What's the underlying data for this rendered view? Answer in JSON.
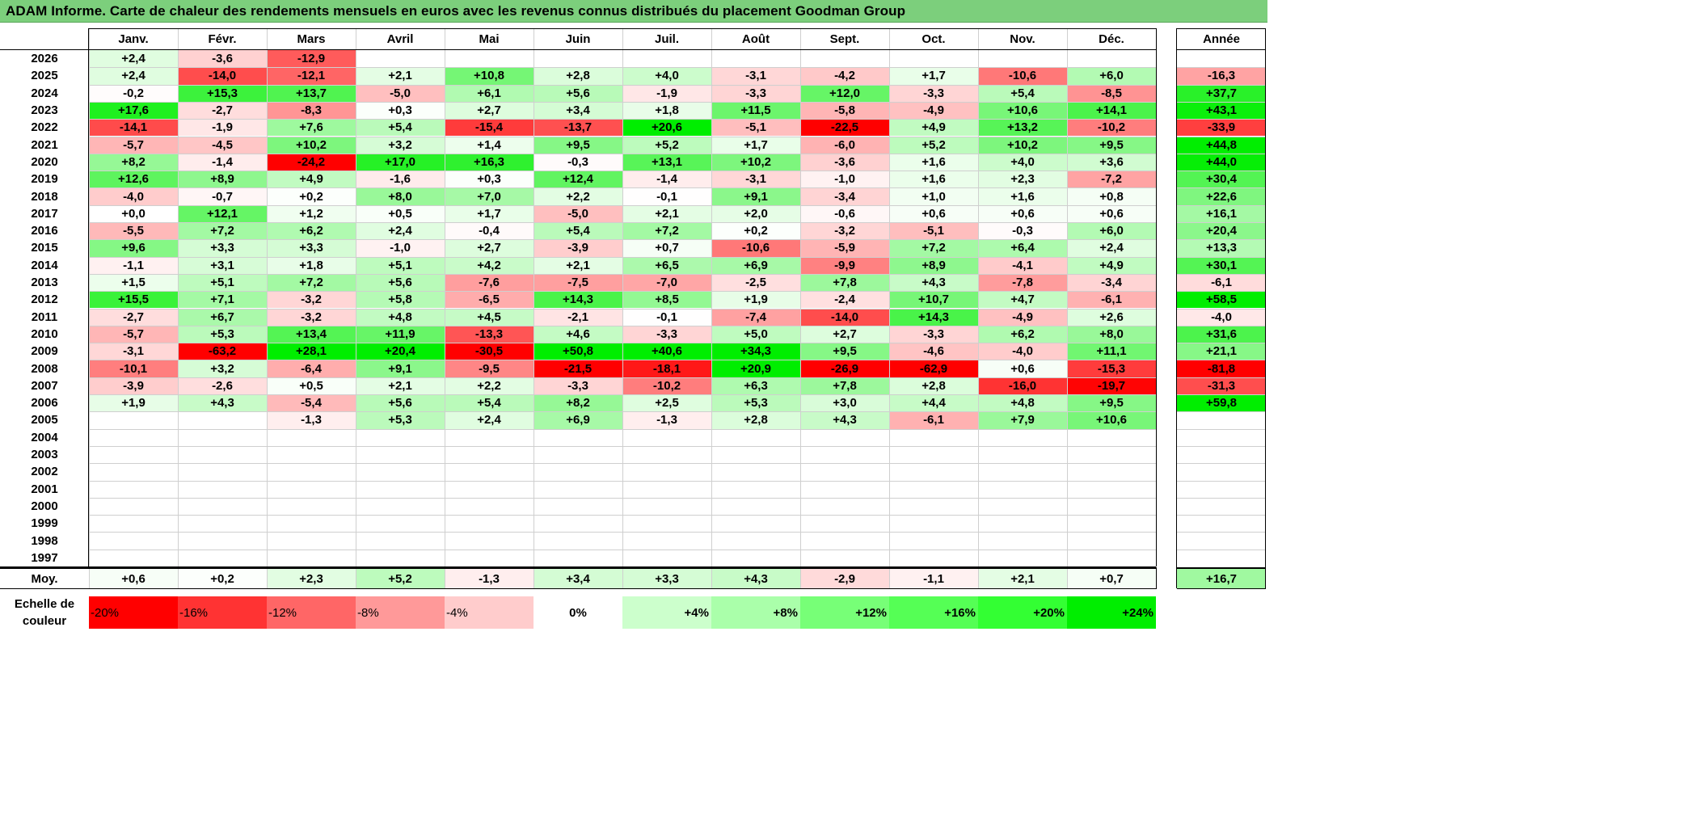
{
  "title": "ADAM Informe. Carte de chaleur des rendements mensuels en euros avec les revenus connus distribués du placement Goodman Group",
  "chart_data": {
    "type": "heatmap",
    "months": [
      "Janv.",
      "Févr.",
      "Mars",
      "Avril",
      "Mai",
      "Juin",
      "Juil.",
      "Août",
      "Sept.",
      "Oct.",
      "Nov.",
      "Déc."
    ],
    "year_header": "Année",
    "rows": [
      {
        "year": "2026",
        "values": [
          "+2,4",
          "-3,6",
          "-12,9",
          "",
          "",
          "",
          "",
          "",
          "",
          "",
          "",
          ""
        ],
        "annual": ""
      },
      {
        "year": "2025",
        "values": [
          "+2,4",
          "-14,0",
          "-12,1",
          "+2,1",
          "+10,8",
          "+2,8",
          "+4,0",
          "-3,1",
          "-4,2",
          "+1,7",
          "-10,6",
          "+6,0"
        ],
        "annual": "-16,3"
      },
      {
        "year": "2024",
        "values": [
          "-0,2",
          "+15,3",
          "+13,7",
          "-5,0",
          "+6,1",
          "+5,6",
          "-1,9",
          "-3,3",
          "+12,0",
          "-3,3",
          "+5,4",
          "-8,5"
        ],
        "annual": "+37,7"
      },
      {
        "year": "2023",
        "values": [
          "+17,6",
          "-2,7",
          "-8,3",
          "+0,3",
          "+2,7",
          "+3,4",
          "+1,8",
          "+11,5",
          "-5,8",
          "-4,9",
          "+10,6",
          "+14,1"
        ],
        "annual": "+43,1"
      },
      {
        "year": "2022",
        "values": [
          "-14,1",
          "-1,9",
          "+7,6",
          "+5,4",
          "-15,4",
          "-13,7",
          "+20,6",
          "-5,1",
          "-22,5",
          "+4,9",
          "+13,2",
          "-10,2"
        ],
        "annual": "-33,9"
      },
      {
        "year": "2021",
        "values": [
          "-5,7",
          "-4,5",
          "+10,2",
          "+3,2",
          "+1,4",
          "+9,5",
          "+5,2",
          "+1,7",
          "-6,0",
          "+5,2",
          "+10,2",
          "+9,5"
        ],
        "annual": "+44,8"
      },
      {
        "year": "2020",
        "values": [
          "+8,2",
          "-1,4",
          "-24,2",
          "+17,0",
          "+16,3",
          "-0,3",
          "+13,1",
          "+10,2",
          "-3,6",
          "+1,6",
          "+4,0",
          "+3,6"
        ],
        "annual": "+44,0"
      },
      {
        "year": "2019",
        "values": [
          "+12,6",
          "+8,9",
          "+4,9",
          "-1,6",
          "+0,3",
          "+12,4",
          "-1,4",
          "-3,1",
          "-1,0",
          "+1,6",
          "+2,3",
          "-7,2"
        ],
        "annual": "+30,4"
      },
      {
        "year": "2018",
        "values": [
          "-4,0",
          "-0,7",
          "+0,2",
          "+8,0",
          "+7,0",
          "+2,2",
          "-0,1",
          "+9,1",
          "-3,4",
          "+1,0",
          "+1,6",
          "+0,8"
        ],
        "annual": "+22,6"
      },
      {
        "year": "2017",
        "values": [
          "+0,0",
          "+12,1",
          "+1,2",
          "+0,5",
          "+1,7",
          "-5,0",
          "+2,1",
          "+2,0",
          "-0,6",
          "+0,6",
          "+0,6",
          "+0,6"
        ],
        "annual": "+16,1"
      },
      {
        "year": "2016",
        "values": [
          "-5,5",
          "+7,2",
          "+6,2",
          "+2,4",
          "-0,4",
          "+5,4",
          "+7,2",
          "+0,2",
          "-3,2",
          "-5,1",
          "-0,3",
          "+6,0"
        ],
        "annual": "+20,4"
      },
      {
        "year": "2015",
        "values": [
          "+9,6",
          "+3,3",
          "+3,3",
          "-1,0",
          "+2,7",
          "-3,9",
          "+0,7",
          "-10,6",
          "-5,9",
          "+7,2",
          "+6,4",
          "+2,4"
        ],
        "annual": "+13,3"
      },
      {
        "year": "2014",
        "values": [
          "-1,1",
          "+3,1",
          "+1,8",
          "+5,1",
          "+4,2",
          "+2,1",
          "+6,5",
          "+6,9",
          "-9,9",
          "+8,9",
          "-4,1",
          "+4,9"
        ],
        "annual": "+30,1"
      },
      {
        "year": "2013",
        "values": [
          "+1,5",
          "+5,1",
          "+7,2",
          "+5,6",
          "-7,6",
          "-7,5",
          "-7,0",
          "-2,5",
          "+7,8",
          "+4,3",
          "-7,8",
          "-3,4"
        ],
        "annual": "-6,1"
      },
      {
        "year": "2012",
        "values": [
          "+15,5",
          "+7,1",
          "-3,2",
          "+5,8",
          "-6,5",
          "+14,3",
          "+8,5",
          "+1,9",
          "-2,4",
          "+10,7",
          "+4,7",
          "-6,1"
        ],
        "annual": "+58,5"
      },
      {
        "year": "2011",
        "values": [
          "-2,7",
          "+6,7",
          "-3,2",
          "+4,8",
          "+4,5",
          "-2,1",
          "-0,1",
          "-7,4",
          "-14,0",
          "+14,3",
          "-4,9",
          "+2,6"
        ],
        "annual": "-4,0"
      },
      {
        "year": "2010",
        "values": [
          "-5,7",
          "+5,3",
          "+13,4",
          "+11,9",
          "-13,3",
          "+4,6",
          "-3,3",
          "+5,0",
          "+2,7",
          "-3,3",
          "+6,2",
          "+8,0"
        ],
        "annual": "+31,6"
      },
      {
        "year": "2009",
        "values": [
          "-3,1",
          "-63,2",
          "+28,1",
          "+20,4",
          "-30,5",
          "+50,8",
          "+40,6",
          "+34,3",
          "+9,5",
          "-4,6",
          "-4,0",
          "+11,1"
        ],
        "annual": "+21,1"
      },
      {
        "year": "2008",
        "values": [
          "-10,1",
          "+3,2",
          "-6,4",
          "+9,1",
          "-9,5",
          "-21,5",
          "-18,1",
          "+20,9",
          "-26,9",
          "-62,9",
          "+0,6",
          "-15,3"
        ],
        "annual": "-81,8"
      },
      {
        "year": "2007",
        "values": [
          "-3,9",
          "-2,6",
          "+0,5",
          "+2,1",
          "+2,2",
          "-3,3",
          "-10,2",
          "+6,3",
          "+7,8",
          "+2,8",
          "-16,0",
          "-19,7"
        ],
        "annual": "-31,3"
      },
      {
        "year": "2006",
        "values": [
          "+1,9",
          "+4,3",
          "-5,4",
          "+5,6",
          "+5,4",
          "+8,2",
          "+2,5",
          "+5,3",
          "+3,0",
          "+4,4",
          "+4,8",
          "+9,5"
        ],
        "annual": "+59,8"
      },
      {
        "year": "2005",
        "values": [
          "",
          "",
          "-1,3",
          "+5,3",
          "+2,4",
          "+6,9",
          "-1,3",
          "+2,8",
          "+4,3",
          "-6,1",
          "+7,9",
          "+10,6"
        ],
        "annual": ""
      },
      {
        "year": "2004",
        "values": [
          "",
          "",
          "",
          "",
          "",
          "",
          "",
          "",
          "",
          "",
          "",
          ""
        ],
        "annual": ""
      },
      {
        "year": "2003",
        "values": [
          "",
          "",
          "",
          "",
          "",
          "",
          "",
          "",
          "",
          "",
          "",
          ""
        ],
        "annual": ""
      },
      {
        "year": "2002",
        "values": [
          "",
          "",
          "",
          "",
          "",
          "",
          "",
          "",
          "",
          "",
          "",
          ""
        ],
        "annual": ""
      },
      {
        "year": "2001",
        "values": [
          "",
          "",
          "",
          "",
          "",
          "",
          "",
          "",
          "",
          "",
          "",
          ""
        ],
        "annual": ""
      },
      {
        "year": "2000",
        "values": [
          "",
          "",
          "",
          "",
          "",
          "",
          "",
          "",
          "",
          "",
          "",
          ""
        ],
        "annual": ""
      },
      {
        "year": "1999",
        "values": [
          "",
          "",
          "",
          "",
          "",
          "",
          "",
          "",
          "",
          "",
          "",
          ""
        ],
        "annual": ""
      },
      {
        "year": "1998",
        "values": [
          "",
          "",
          "",
          "",
          "",
          "",
          "",
          "",
          "",
          "",
          "",
          ""
        ],
        "annual": ""
      },
      {
        "year": "1997",
        "values": [
          "",
          "",
          "",
          "",
          "",
          "",
          "",
          "",
          "",
          "",
          "",
          ""
        ],
        "annual": ""
      }
    ],
    "average": {
      "label": "Moy.",
      "values": [
        "+0,6",
        "+0,2",
        "+2,3",
        "+5,2",
        "-1,3",
        "+3,4",
        "+3,3",
        "+4,3",
        "-2,9",
        "-1,1",
        "+2,1",
        "+0,7"
      ],
      "annual": "+16,7"
    },
    "color_scale": {
      "label": "Echelle de couleur",
      "stops": [
        "-20%",
        "-16%",
        "-12%",
        "-8%",
        "-4%",
        "0%",
        "+4%",
        "+8%",
        "+12%",
        "+16%",
        "+20%",
        "+24%"
      ],
      "colors": [
        "#ff0000",
        "#ff3333",
        "#ff6666",
        "#ff9999",
        "#ffcccc",
        "#ffffff",
        "#ccffcc",
        "#aaffaa",
        "#77ff77",
        "#55ff55",
        "#33ff33",
        "#00ee00"
      ]
    }
  }
}
